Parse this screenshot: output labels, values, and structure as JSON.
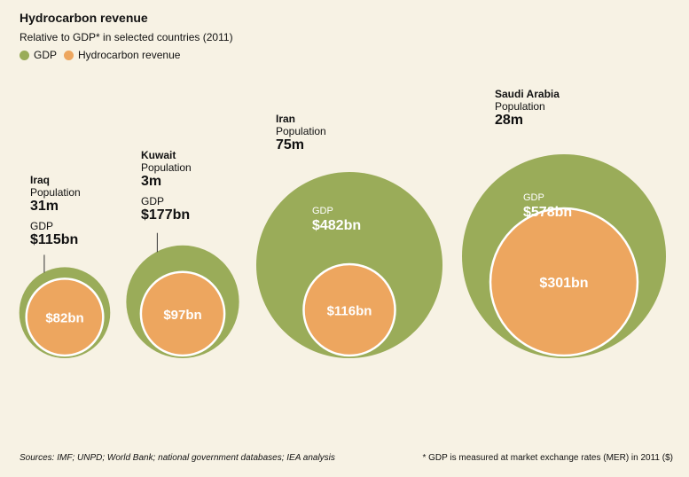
{
  "title": "Hydrocarbon revenue",
  "subtitle": "Relative to GDP* in selected countries (2011)",
  "legend": [
    {
      "label": "GDP",
      "color": "#9aac59"
    },
    {
      "label": "Hydrocarbon revenue",
      "color": "#eda65f"
    }
  ],
  "labels": {
    "population": "Population",
    "gdp": "GDP"
  },
  "chart_data": {
    "type": "bubble",
    "unit": "$bn",
    "series": [
      {
        "name": "GDP",
        "color": "#9aac59"
      },
      {
        "name": "Hydrocarbon revenue",
        "color": "#eda65f"
      }
    ],
    "countries": [
      {
        "name": "Iraq",
        "population": "31m",
        "gdp": 115,
        "gdp_label": "$115bn",
        "revenue": 82,
        "revenue_label": "$82bn"
      },
      {
        "name": "Kuwait",
        "population": "3m",
        "gdp": 177,
        "gdp_label": "$177bn",
        "revenue": 97,
        "revenue_label": "$97bn"
      },
      {
        "name": "Iran",
        "population": "75m",
        "gdp": 482,
        "gdp_label": "$482bn",
        "revenue": 116,
        "revenue_label": "$116bn"
      },
      {
        "name": "Saudi Arabia",
        "population": "28m",
        "gdp": 578,
        "gdp_label": "$578bn",
        "revenue": 301,
        "revenue_label": "$301bn"
      }
    ]
  },
  "footer": {
    "sources": "Sources: IMF; UNPD; World Bank; national government databases; IEA analysis",
    "note": "* GDP is measured at market exchange rates (MER) in 2011 ($)"
  }
}
